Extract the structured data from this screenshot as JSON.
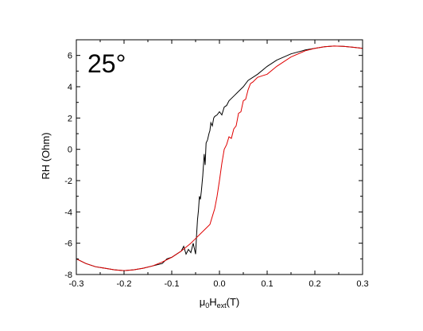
{
  "chart_data": {
    "type": "line",
    "annotation": "25°",
    "ylabel": "RH (Ohm)",
    "xlabel_main": "μ",
    "xlabel_sub0": "0",
    "xlabel_H": "H",
    "xlabel_sub1": "ext",
    "xlabel_unit": "(T)",
    "xlim": [
      -0.3,
      0.3
    ],
    "ylim": [
      -8,
      7
    ],
    "xticks": [
      -0.3,
      -0.2,
      -0.1,
      0.0,
      0.1,
      0.2,
      0.3
    ],
    "xtick_labels": [
      "-0.3",
      "-0.2",
      "-0.1",
      "0.0",
      "0.1",
      "0.2",
      "0.3"
    ],
    "yticks": [
      -8,
      -6,
      -4,
      -2,
      0,
      2,
      4,
      6
    ],
    "ytick_labels": [
      "-8",
      "-6",
      "-4",
      "-2",
      "0",
      "2",
      "4",
      "6"
    ],
    "grid": false,
    "series": [
      {
        "color": "#000000",
        "x": [
          -0.3,
          -0.28,
          -0.26,
          -0.24,
          -0.22,
          -0.2,
          -0.18,
          -0.16,
          -0.14,
          -0.12,
          -0.11,
          -0.1,
          -0.09,
          -0.08,
          -0.075,
          -0.07,
          -0.065,
          -0.06,
          -0.055,
          -0.05,
          -0.048,
          -0.046,
          -0.044,
          -0.042,
          -0.04,
          -0.038,
          -0.035,
          -0.032,
          -0.03,
          -0.028,
          -0.025,
          -0.022,
          -0.02,
          -0.018,
          -0.015,
          -0.012,
          -0.01,
          -0.005,
          0.0,
          0.005,
          0.01,
          0.015,
          0.02,
          0.03,
          0.04,
          0.05,
          0.06,
          0.08,
          0.1,
          0.12,
          0.15,
          0.18,
          0.2,
          0.22,
          0.24,
          0.26,
          0.28,
          0.3
        ],
        "y": [
          -7.0,
          -7.3,
          -7.5,
          -7.6,
          -7.7,
          -7.75,
          -7.7,
          -7.6,
          -7.45,
          -7.3,
          -7.0,
          -6.9,
          -6.7,
          -6.5,
          -6.2,
          -6.7,
          -6.4,
          -6.6,
          -6.0,
          -6.7,
          -5.5,
          -4.5,
          -3.9,
          -3.0,
          -3.2,
          -2.7,
          -1.7,
          -0.3,
          -1.0,
          0.4,
          0.6,
          1.0,
          1.2,
          1.7,
          1.5,
          2.0,
          2.1,
          2.2,
          2.4,
          2.2,
          2.7,
          2.8,
          3.1,
          3.4,
          3.7,
          4.0,
          4.4,
          4.8,
          5.3,
          5.7,
          6.1,
          6.35,
          6.45,
          6.55,
          6.6,
          6.58,
          6.52,
          6.45
        ]
      },
      {
        "color": "#e00000",
        "x": [
          -0.3,
          -0.28,
          -0.26,
          -0.24,
          -0.22,
          -0.2,
          -0.18,
          -0.16,
          -0.14,
          -0.12,
          -0.1,
          -0.08,
          -0.06,
          -0.05,
          -0.04,
          -0.03,
          -0.02,
          -0.015,
          -0.01,
          -0.005,
          0.0,
          0.005,
          0.01,
          0.015,
          0.02,
          0.025,
          0.03,
          0.035,
          0.04,
          0.045,
          0.05,
          0.055,
          0.06,
          0.065,
          0.07,
          0.08,
          0.09,
          0.1,
          0.12,
          0.15,
          0.18,
          0.2,
          0.22,
          0.24,
          0.26,
          0.28,
          0.3
        ],
        "y": [
          -7.0,
          -7.3,
          -7.5,
          -7.6,
          -7.7,
          -7.75,
          -7.7,
          -7.6,
          -7.45,
          -7.2,
          -6.9,
          -6.5,
          -6.0,
          -5.7,
          -5.4,
          -5.1,
          -4.8,
          -4.3,
          -3.8,
          -3.0,
          -2.0,
          -0.9,
          0.0,
          0.3,
          0.8,
          0.7,
          1.3,
          1.5,
          2.3,
          2.4,
          3.1,
          3.2,
          3.8,
          4.2,
          4.3,
          4.6,
          4.7,
          4.8,
          5.3,
          5.9,
          6.3,
          6.45,
          6.55,
          6.6,
          6.58,
          6.52,
          6.45
        ]
      }
    ]
  }
}
